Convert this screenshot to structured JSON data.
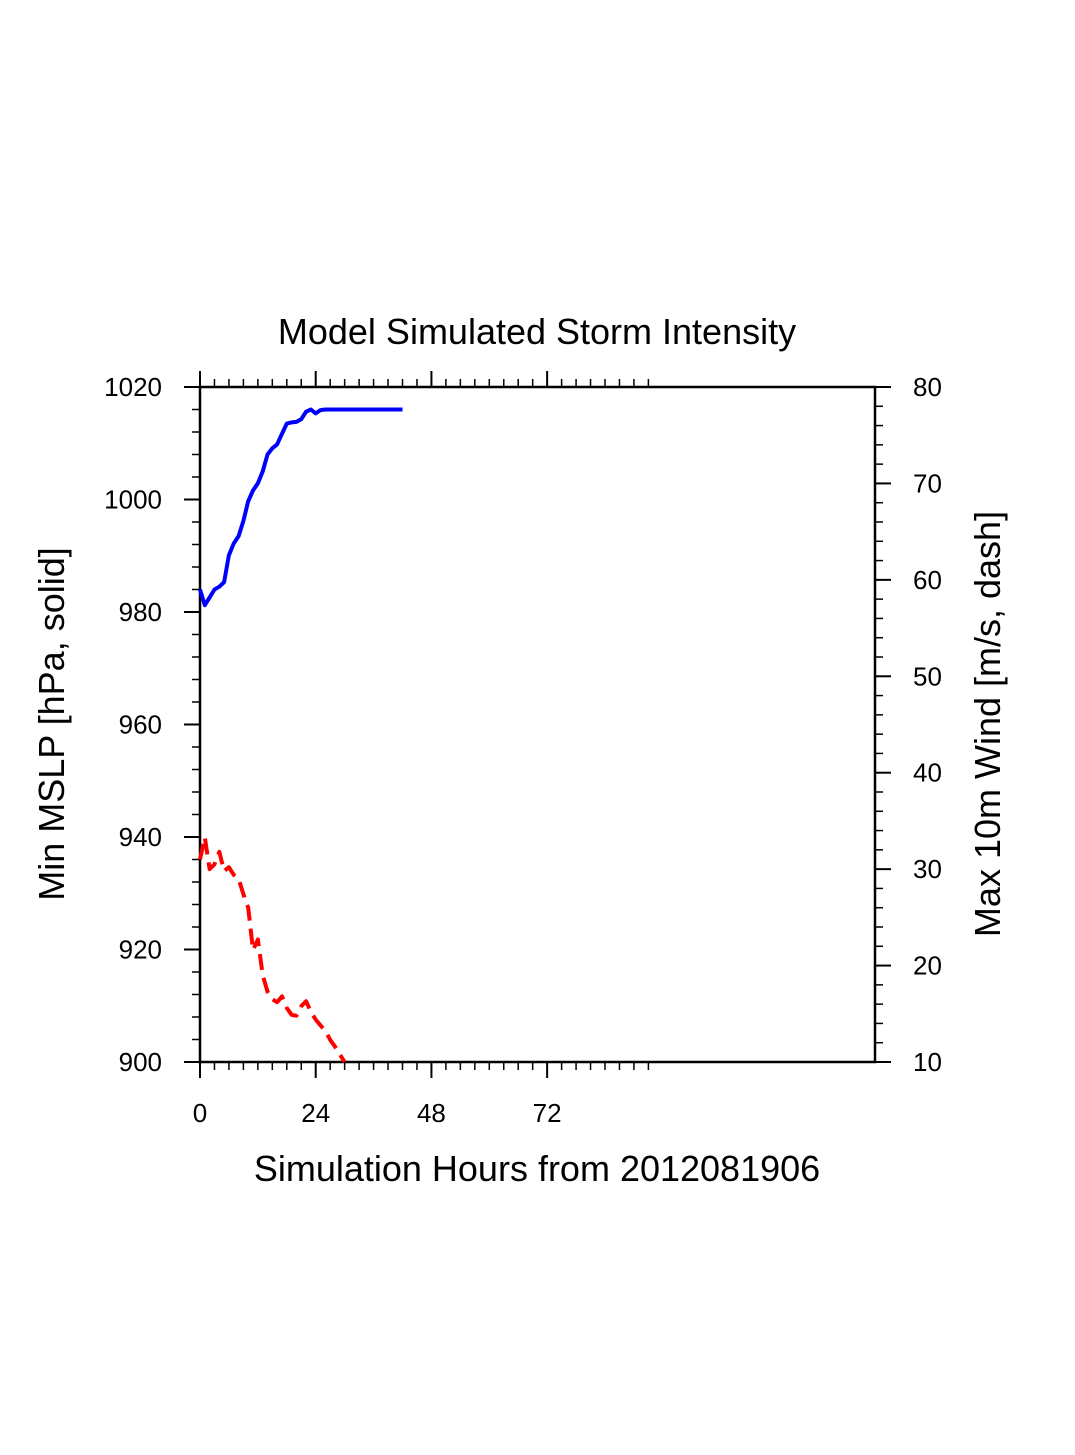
{
  "chart_data": {
    "type": "line",
    "title": "Model Simulated Storm Intensity",
    "xlabel": "Simulation Hours from 2012081906",
    "ylabel_left": "Min MSLP  [hPa, solid]",
    "ylabel_right": "Max 10m Wind  [m/s, dash]",
    "xlim": [
      0,
      140
    ],
    "ylim_left": [
      900,
      1020
    ],
    "ylim_right": [
      10,
      80
    ],
    "x_ticks": [
      "0",
      "24",
      "48",
      "72"
    ],
    "x_tick_values": [
      0,
      24,
      48,
      72
    ],
    "y_left_ticks": [
      "900",
      "920",
      "940",
      "960",
      "980",
      "1000",
      "1020"
    ],
    "y_left_tick_values": [
      900,
      920,
      940,
      960,
      980,
      1000,
      1020
    ],
    "y_right_ticks": [
      "10",
      "20",
      "30",
      "40",
      "50",
      "60",
      "70",
      "80"
    ],
    "y_right_tick_values": [
      10,
      20,
      30,
      40,
      50,
      60,
      70,
      80
    ],
    "grid": false,
    "legend": "none",
    "series": [
      {
        "axis": "left",
        "style": "solid",
        "color": "#0000ff",
        "x": [
          0,
          1,
          2,
          3,
          4,
          5,
          6,
          7,
          8,
          9,
          10,
          11,
          12,
          13,
          14,
          15,
          16,
          17,
          18,
          19,
          20,
          21,
          22,
          23,
          24,
          25,
          26,
          27,
          28,
          29,
          30,
          31,
          32,
          33,
          34,
          35,
          36,
          37,
          38,
          39,
          40,
          41,
          42
        ],
        "y": [
          984,
          981.2,
          982.6,
          984.0,
          984.5,
          985.3,
          990.1,
          992.2,
          993.5,
          996.2,
          999.7,
          1001.6,
          1002.9,
          1005.0,
          1008.0,
          1009.1,
          1009.8,
          1011.7,
          1013.5,
          1013.7,
          1013.8,
          1014.3,
          1015.6,
          1016.0,
          1015.3,
          1015.9,
          1016.0,
          1016.0,
          1016.0,
          1016.0,
          1016.0,
          1016.0,
          1016.0,
          1016.0,
          1016.0,
          1016.0,
          1016.0,
          1016.0,
          1016.0,
          1016.0,
          1016.0,
          1016.0,
          1016.0
        ]
      },
      {
        "axis": "right",
        "style": "dashed",
        "color": "#ff0000",
        "x": [
          0,
          1,
          2,
          3,
          4,
          5,
          6,
          7,
          8,
          9,
          10,
          11,
          12,
          13,
          14,
          15,
          16,
          17,
          18,
          19,
          20,
          21,
          22,
          23,
          24,
          25,
          26,
          27,
          28,
          29,
          30
        ],
        "y": [
          31.0,
          33.3,
          30.0,
          30.5,
          31.8,
          29.8,
          30.2,
          29.4,
          29.0,
          27.4,
          26.0,
          21.6,
          22.7,
          19.0,
          17.3,
          16.5,
          16.2,
          16.8,
          15.6,
          14.9,
          14.8,
          15.8,
          16.3,
          15.2,
          14.4,
          13.8,
          13.2,
          12.3,
          11.6,
          10.8,
          10.0
        ]
      }
    ]
  }
}
